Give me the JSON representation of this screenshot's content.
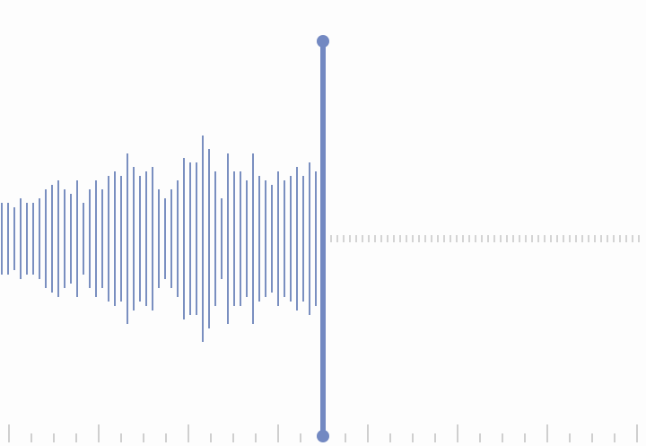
{
  "colors": {
    "background": "#fdfdfd",
    "waveform": "#7a8fc0",
    "playhead": "#7389c2",
    "placeholder": "#d4d4d4",
    "ruler": "#cfcfcf"
  },
  "playhead_icon": "playhead-line-icon",
  "waveform": {
    "amplitudes": [
      0.4,
      0.4,
      0.35,
      0.45,
      0.4,
      0.4,
      0.45,
      0.55,
      0.6,
      0.65,
      0.55,
      0.5,
      0.65,
      0.4,
      0.55,
      0.65,
      0.55,
      0.7,
      0.75,
      0.7,
      0.95,
      0.8,
      0.7,
      0.75,
      0.8,
      0.55,
      0.45,
      0.55,
      0.65,
      0.9,
      0.85,
      0.85,
      1.15,
      1.0,
      0.75,
      0.45,
      0.95,
      0.75,
      0.75,
      0.65,
      0.95,
      0.7,
      0.65,
      0.6,
      0.75,
      0.65,
      0.7,
      0.8,
      0.7,
      0.85,
      0.75
    ]
  },
  "playback": {
    "progress": 0.5
  }
}
